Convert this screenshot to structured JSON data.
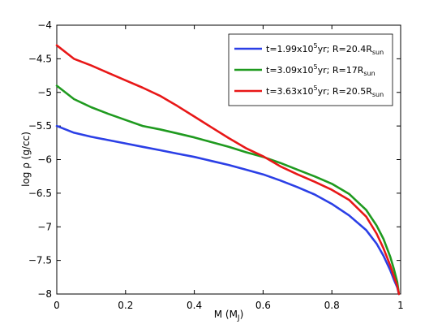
{
  "chart_data": {
    "type": "line",
    "title": "",
    "xlabel": {
      "main": "M (M",
      "sub": "J",
      "close": ")"
    },
    "ylabel": "log ρ (g/cc)",
    "xlim": [
      0,
      1
    ],
    "ylim": [
      -8,
      -4
    ],
    "xticks": [
      0,
      0.2,
      0.4,
      0.6,
      0.8,
      1
    ],
    "xtick_labels": [
      "0",
      "0.2",
      "0.4",
      "0.6",
      "0.8",
      "1"
    ],
    "yticks": [
      -8,
      -7.5,
      -7,
      -6.5,
      -6,
      -5.5,
      -5,
      -4.5,
      -4
    ],
    "ytick_labels": [
      "−8",
      "−7.5",
      "−7",
      "−6.5",
      "−6",
      "−5.5",
      "−5",
      "−4.5",
      "−4"
    ],
    "grid": false,
    "legend_position": "top-right",
    "series": [
      {
        "name": "t=1.99x10^5yr; R=20.4R_sun",
        "label_parts": {
          "a": "t=1.99x10",
          "sup": "5",
          "b": "yr; R=20.4R",
          "sub": "sun"
        },
        "color": "#2b3fe6",
        "x": [
          0,
          0.05,
          0.1,
          0.15,
          0.2,
          0.25,
          0.3,
          0.35,
          0.4,
          0.45,
          0.5,
          0.55,
          0.6,
          0.65,
          0.7,
          0.75,
          0.8,
          0.85,
          0.9,
          0.93,
          0.95,
          0.97,
          0.98,
          0.99,
          0.995
        ],
        "y": [
          -5.5,
          -5.6,
          -5.66,
          -5.71,
          -5.76,
          -5.81,
          -5.86,
          -5.91,
          -5.96,
          -6.02,
          -6.08,
          -6.15,
          -6.22,
          -6.31,
          -6.41,
          -6.52,
          -6.66,
          -6.83,
          -7.05,
          -7.25,
          -7.43,
          -7.65,
          -7.78,
          -7.9,
          -8.0
        ]
      },
      {
        "name": "t=3.09x10^5yr; R=17R_sun",
        "label_parts": {
          "a": "t=3.09x10",
          "sup": "5",
          "b": "yr; R=17R",
          "sub": "sun"
        },
        "color": "#1f9a1f",
        "x": [
          0,
          0.05,
          0.1,
          0.15,
          0.2,
          0.25,
          0.3,
          0.35,
          0.4,
          0.45,
          0.5,
          0.55,
          0.6,
          0.65,
          0.7,
          0.75,
          0.8,
          0.85,
          0.9,
          0.93,
          0.95,
          0.97,
          0.98,
          0.99,
          0.995
        ],
        "y": [
          -4.9,
          -5.1,
          -5.22,
          -5.32,
          -5.41,
          -5.5,
          -5.55,
          -5.61,
          -5.67,
          -5.74,
          -5.81,
          -5.89,
          -5.96,
          -6.05,
          -6.15,
          -6.25,
          -6.36,
          -6.51,
          -6.75,
          -6.98,
          -7.18,
          -7.45,
          -7.62,
          -7.82,
          -8.0
        ]
      },
      {
        "name": "t=3.63x10^5yr; R=20.5R_sun",
        "label_parts": {
          "a": "t=3.63x10",
          "sup": "5",
          "b": "yr; R=20.5R",
          "sub": "sun"
        },
        "color": "#e81717",
        "x": [
          0,
          0.05,
          0.1,
          0.15,
          0.2,
          0.25,
          0.3,
          0.35,
          0.4,
          0.45,
          0.5,
          0.55,
          0.6,
          0.65,
          0.7,
          0.75,
          0.8,
          0.85,
          0.9,
          0.93,
          0.95,
          0.97,
          0.98,
          0.99,
          0.995
        ],
        "y": [
          -4.3,
          -4.5,
          -4.6,
          -4.71,
          -4.82,
          -4.93,
          -5.05,
          -5.2,
          -5.36,
          -5.52,
          -5.68,
          -5.83,
          -5.95,
          -6.1,
          -6.22,
          -6.33,
          -6.45,
          -6.6,
          -6.85,
          -7.1,
          -7.32,
          -7.58,
          -7.73,
          -7.88,
          -8.0
        ]
      }
    ]
  }
}
